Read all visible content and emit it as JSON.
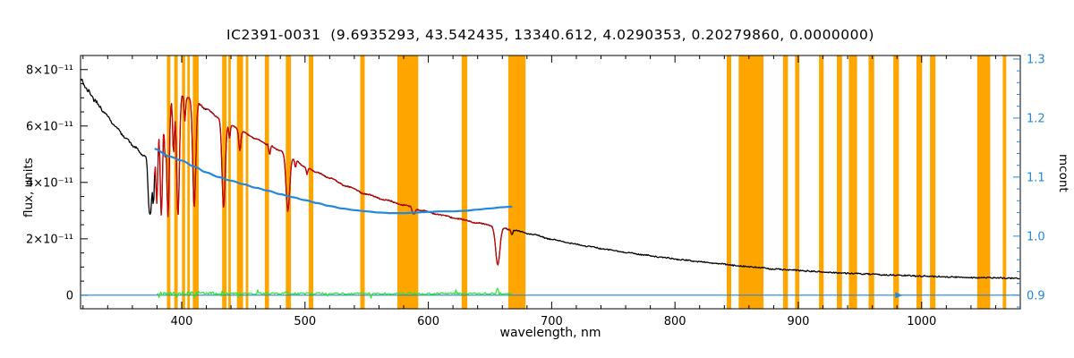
{
  "title": "IC2391-0031  (9.6935293, 43.542435, 13340.612, 4.0290353, 0.20279860, 0.0000000)",
  "colors": {
    "spectrum": "#000000",
    "model_fit": "#e00000",
    "mask_band": "#ffa500",
    "residual": "#2ee32e",
    "mcont": "#2188dd",
    "axis_right": "#2188dd",
    "axis": "#000000"
  },
  "chart_data": {
    "type": "line",
    "title": "IC2391-0031  (9.6935293, 43.542435, 13340.612, 4.0290353, 0.20279860, 0.0000000)",
    "xlabel": "wavelength, nm",
    "ylabel_left": "flux, units",
    "ylabel_right": "mcont",
    "x_axis": {
      "min": 318,
      "max": 1080,
      "major_ticks": [
        400,
        500,
        600,
        700,
        800,
        900,
        1000
      ],
      "minor_step": 20
    },
    "y_left_axis": {
      "unit": "1e-11 flux units",
      "min": -0.48,
      "max": 8.5,
      "minor_step": 0.5,
      "ticks": [
        {
          "value": 0,
          "label": "0"
        },
        {
          "value": 2,
          "label": "2×10⁻¹¹"
        },
        {
          "value": 4,
          "label": "4×10⁻¹¹"
        },
        {
          "value": 6,
          "label": "6×10⁻¹¹"
        },
        {
          "value": 8,
          "label": "8×10⁻¹¹"
        }
      ]
    },
    "y_right_axis": {
      "min": 0.877,
      "max": 1.306,
      "minor_step": 0.02,
      "ticks": [
        {
          "value": 0.9,
          "label": "0.9"
        },
        {
          "value": 1.0,
          "label": "1.0"
        },
        {
          "value": 1.1,
          "label": "1.1"
        },
        {
          "value": 1.2,
          "label": "1.2"
        },
        {
          "value": 1.3,
          "label": "1.3"
        }
      ]
    },
    "series": [
      {
        "name": "observed-spectrum",
        "color": "#000000",
        "units": "1e-11",
        "points": [
          [
            318,
            7.65
          ],
          [
            324,
            7.25
          ],
          [
            330,
            6.9
          ],
          [
            338,
            6.45
          ],
          [
            346,
            6.0
          ],
          [
            354,
            5.6
          ],
          [
            362,
            5.25
          ],
          [
            369,
            4.95
          ],
          [
            374,
            4.75
          ],
          [
            377,
            5.5
          ],
          [
            379,
            6.3
          ],
          [
            383,
            6.7
          ],
          [
            388,
            6.9
          ],
          [
            394,
            7.0
          ],
          [
            400,
            7.08
          ],
          [
            406,
            7.0
          ],
          [
            412,
            6.85
          ],
          [
            420,
            6.6
          ],
          [
            430,
            6.3
          ],
          [
            440,
            6.02
          ],
          [
            450,
            5.78
          ],
          [
            460,
            5.55
          ],
          [
            470,
            5.35
          ],
          [
            480,
            5.12
          ],
          [
            490,
            4.85
          ],
          [
            500,
            4.55
          ],
          [
            510,
            4.35
          ],
          [
            520,
            4.15
          ],
          [
            535,
            3.85
          ],
          [
            550,
            3.58
          ],
          [
            565,
            3.38
          ],
          [
            580,
            3.2
          ],
          [
            595,
            3.0
          ],
          [
            610,
            2.85
          ],
          [
            625,
            2.7
          ],
          [
            640,
            2.56
          ],
          [
            655,
            2.44
          ],
          [
            670,
            2.3
          ],
          [
            685,
            2.15
          ],
          [
            700,
            1.98
          ],
          [
            715,
            1.85
          ],
          [
            730,
            1.73
          ],
          [
            745,
            1.62
          ],
          [
            760,
            1.52
          ],
          [
            775,
            1.43
          ],
          [
            790,
            1.34
          ],
          [
            805,
            1.26
          ],
          [
            820,
            1.19
          ],
          [
            835,
            1.12
          ],
          [
            850,
            1.05
          ],
          [
            865,
            0.99
          ],
          [
            880,
            0.93
          ],
          [
            895,
            0.89
          ],
          [
            910,
            0.85
          ],
          [
            925,
            0.81
          ],
          [
            940,
            0.78
          ],
          [
            955,
            0.75
          ],
          [
            970,
            0.72
          ],
          [
            985,
            0.7
          ],
          [
            1000,
            0.68
          ],
          [
            1015,
            0.66
          ],
          [
            1030,
            0.64
          ],
          [
            1050,
            0.62
          ],
          [
            1080,
            0.6
          ]
        ]
      },
      {
        "name": "model-fit",
        "color": "#e00000",
        "range": [
          378,
          668
        ]
      },
      {
        "name": "mcont",
        "color": "#2188dd",
        "points": [
          [
            378,
            1.148
          ],
          [
            390,
            1.135
          ],
          [
            400,
            1.128
          ],
          [
            410,
            1.118
          ],
          [
            420,
            1.108
          ],
          [
            430,
            1.1
          ],
          [
            440,
            1.094
          ],
          [
            450,
            1.088
          ],
          [
            460,
            1.082
          ],
          [
            470,
            1.077
          ],
          [
            480,
            1.071
          ],
          [
            490,
            1.066
          ],
          [
            500,
            1.061
          ],
          [
            510,
            1.056
          ],
          [
            520,
            1.051
          ],
          [
            530,
            1.047
          ],
          [
            540,
            1.044
          ],
          [
            550,
            1.042
          ],
          [
            560,
            1.04
          ],
          [
            570,
            1.039
          ],
          [
            580,
            1.039
          ],
          [
            590,
            1.04
          ],
          [
            600,
            1.041
          ],
          [
            610,
            1.042
          ],
          [
            620,
            1.042
          ],
          [
            630,
            1.043
          ],
          [
            640,
            1.045
          ],
          [
            650,
            1.047
          ],
          [
            660,
            1.049
          ],
          [
            668,
            1.05
          ]
        ]
      },
      {
        "name": "residual",
        "color": "#2ee32e",
        "range": [
          380,
          668
        ],
        "mean_level": 0.06
      },
      {
        "name": "mcont-baseline",
        "color": "#2188dd",
        "value": 0.9,
        "marker_wavelength": 983
      }
    ],
    "absorption_lines": [
      [
        373.4,
        0.3,
        0.8
      ],
      [
        375.0,
        0.35,
        0.8
      ],
      [
        377.1,
        0.4,
        0.8
      ],
      [
        379.8,
        0.48,
        0.9
      ],
      [
        383.5,
        0.58,
        1.0
      ],
      [
        386.5,
        0.25,
        0.6
      ],
      [
        388.9,
        0.6,
        1.0
      ],
      [
        393.4,
        0.28,
        0.7
      ],
      [
        397.0,
        0.6,
        1.1
      ],
      [
        402.6,
        0.12,
        0.6
      ],
      [
        410.2,
        0.55,
        1.2
      ],
      [
        434.0,
        0.5,
        1.3
      ],
      [
        438.8,
        0.08,
        0.6
      ],
      [
        447.1,
        0.12,
        0.8
      ],
      [
        471.3,
        0.07,
        0.6
      ],
      [
        486.1,
        0.4,
        1.4
      ],
      [
        492.2,
        0.06,
        0.6
      ],
      [
        501.6,
        0.06,
        0.6
      ],
      [
        587.6,
        0.07,
        0.7
      ],
      [
        589.0,
        0.05,
        0.5
      ],
      [
        656.3,
        0.56,
        1.7
      ],
      [
        667.8,
        0.07,
        0.6
      ]
    ],
    "masked_bands": [
      [
        388.0,
        390.8
      ],
      [
        394.0,
        396.8
      ],
      [
        400.3,
        402.8
      ],
      [
        404.6,
        406.6
      ],
      [
        409.0,
        413.8
      ],
      [
        432.8,
        436.4
      ],
      [
        437.8,
        439.8
      ],
      [
        444.8,
        449.8
      ],
      [
        452.0,
        454.0
      ],
      [
        467.4,
        470.8
      ],
      [
        484.4,
        488.6
      ],
      [
        503.0,
        506.8
      ],
      [
        544.8,
        548.4
      ],
      [
        574.8,
        591.8
      ],
      [
        627.0,
        631.6
      ],
      [
        664.8,
        678.8
      ],
      [
        842.0,
        845.6
      ],
      [
        851.6,
        871.8
      ],
      [
        887.6,
        891.6
      ],
      [
        897.4,
        900.8
      ],
      [
        916.8,
        920.6
      ],
      [
        931.2,
        935.4
      ],
      [
        941.0,
        947.6
      ],
      [
        957.0,
        961.6
      ],
      [
        977.0,
        981.6
      ],
      [
        995.8,
        1000.4
      ],
      [
        1006.8,
        1011.2
      ],
      [
        1045.0,
        1055.6
      ],
      [
        1065.8,
        1068.6
      ]
    ]
  }
}
